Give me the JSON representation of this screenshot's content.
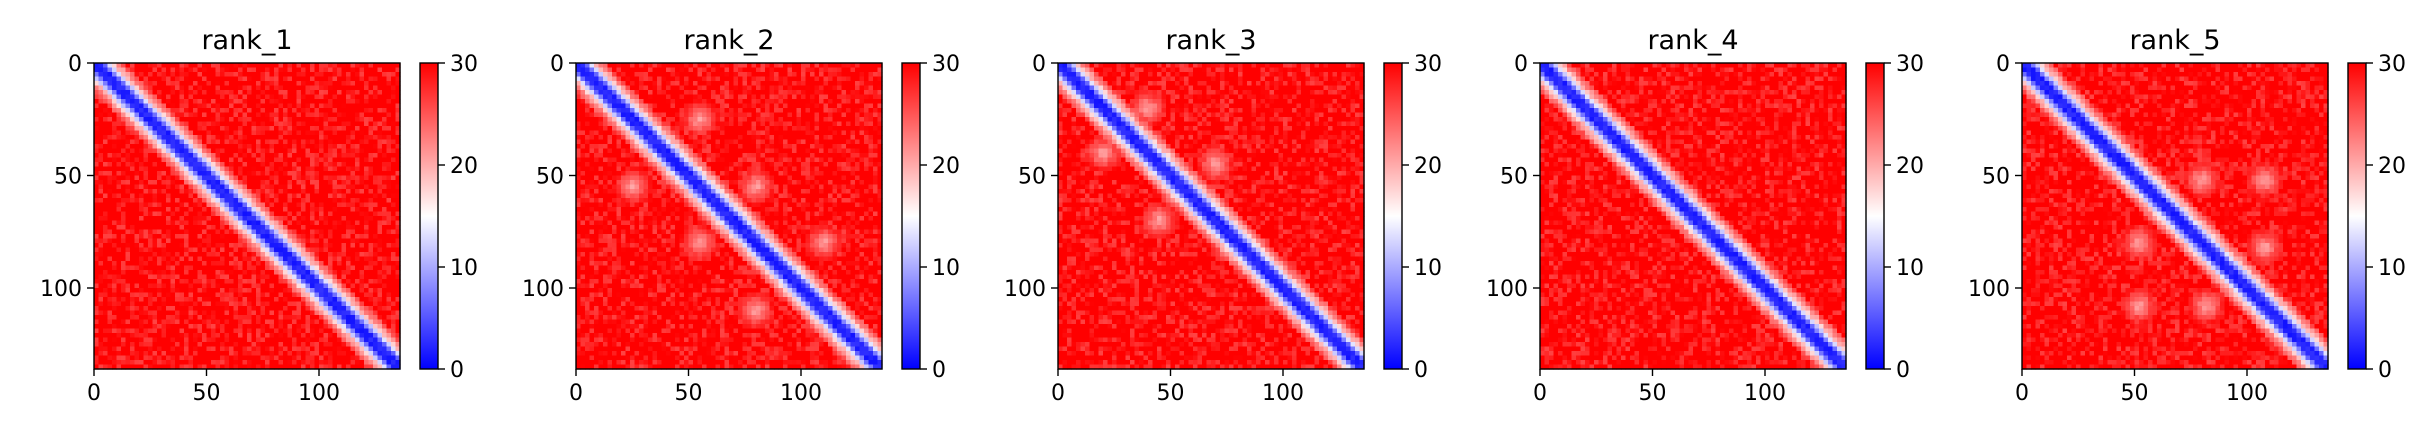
{
  "chart_data": [
    {
      "type": "heatmap",
      "title": "rank_1",
      "matrix_size": 136,
      "x_ticks": [
        0,
        50,
        100
      ],
      "y_ticks": [
        0,
        50,
        100
      ],
      "colorbar": {
        "range": [
          0,
          30
        ],
        "ticks": [
          0,
          10,
          20,
          30
        ],
        "colormap": "bwr",
        "colors": [
          "#0000ff",
          "#ffffff",
          "#ff0000"
        ]
      },
      "pattern": {
        "diagonal_band": "blue",
        "off_diagonal": "red",
        "light_blobs": []
      }
    },
    {
      "type": "heatmap",
      "title": "rank_2",
      "matrix_size": 136,
      "x_ticks": [
        0,
        50,
        100
      ],
      "y_ticks": [
        0,
        50,
        100
      ],
      "colorbar": {
        "range": [
          0,
          30
        ],
        "ticks": [
          0,
          10,
          20,
          30
        ],
        "colormap": "bwr",
        "colors": [
          "#0000ff",
          "#ffffff",
          "#ff0000"
        ]
      },
      "pattern": {
        "diagonal_band": "blue",
        "off_diagonal": "red",
        "light_blobs": [
          [
            55,
            25
          ],
          [
            25,
            55
          ],
          [
            80,
            55
          ],
          [
            55,
            80
          ],
          [
            110,
            80
          ],
          [
            80,
            110
          ]
        ]
      }
    },
    {
      "type": "heatmap",
      "title": "rank_3",
      "matrix_size": 136,
      "x_ticks": [
        0,
        50,
        100
      ],
      "y_ticks": [
        0,
        50,
        100
      ],
      "colorbar": {
        "range": [
          0,
          30
        ],
        "ticks": [
          0,
          10,
          20,
          30
        ],
        "colormap": "bwr",
        "colors": [
          "#0000ff",
          "#ffffff",
          "#ff0000"
        ]
      },
      "pattern": {
        "diagonal_band": "blue",
        "off_diagonal": "red",
        "light_blobs": [
          [
            40,
            20
          ],
          [
            20,
            40
          ],
          [
            70,
            45
          ],
          [
            45,
            70
          ]
        ]
      }
    },
    {
      "type": "heatmap",
      "title": "rank_4",
      "matrix_size": 136,
      "x_ticks": [
        0,
        50,
        100
      ],
      "y_ticks": [
        0,
        50,
        100
      ],
      "colorbar": {
        "range": [
          0,
          30
        ],
        "ticks": [
          0,
          10,
          20,
          30
        ],
        "colormap": "bwr",
        "colors": [
          "#0000ff",
          "#ffffff",
          "#ff0000"
        ]
      },
      "pattern": {
        "diagonal_band": "blue",
        "off_diagonal": "red",
        "light_blobs": []
      }
    },
    {
      "type": "heatmap",
      "title": "rank_5",
      "matrix_size": 136,
      "x_ticks": [
        0,
        50,
        100
      ],
      "y_ticks": [
        0,
        50,
        100
      ],
      "colorbar": {
        "range": [
          0,
          30
        ],
        "ticks": [
          0,
          10,
          20,
          30
        ],
        "colormap": "bwr",
        "colors": [
          "#0000ff",
          "#ffffff",
          "#ff0000"
        ]
      },
      "pattern": {
        "diagonal_band": "blue",
        "off_diagonal": "red",
        "light_blobs": [
          [
            52,
            80
          ],
          [
            80,
            52
          ],
          [
            82,
            108
          ],
          [
            108,
            82
          ],
          [
            52,
            108
          ],
          [
            108,
            52
          ]
        ]
      }
    }
  ]
}
